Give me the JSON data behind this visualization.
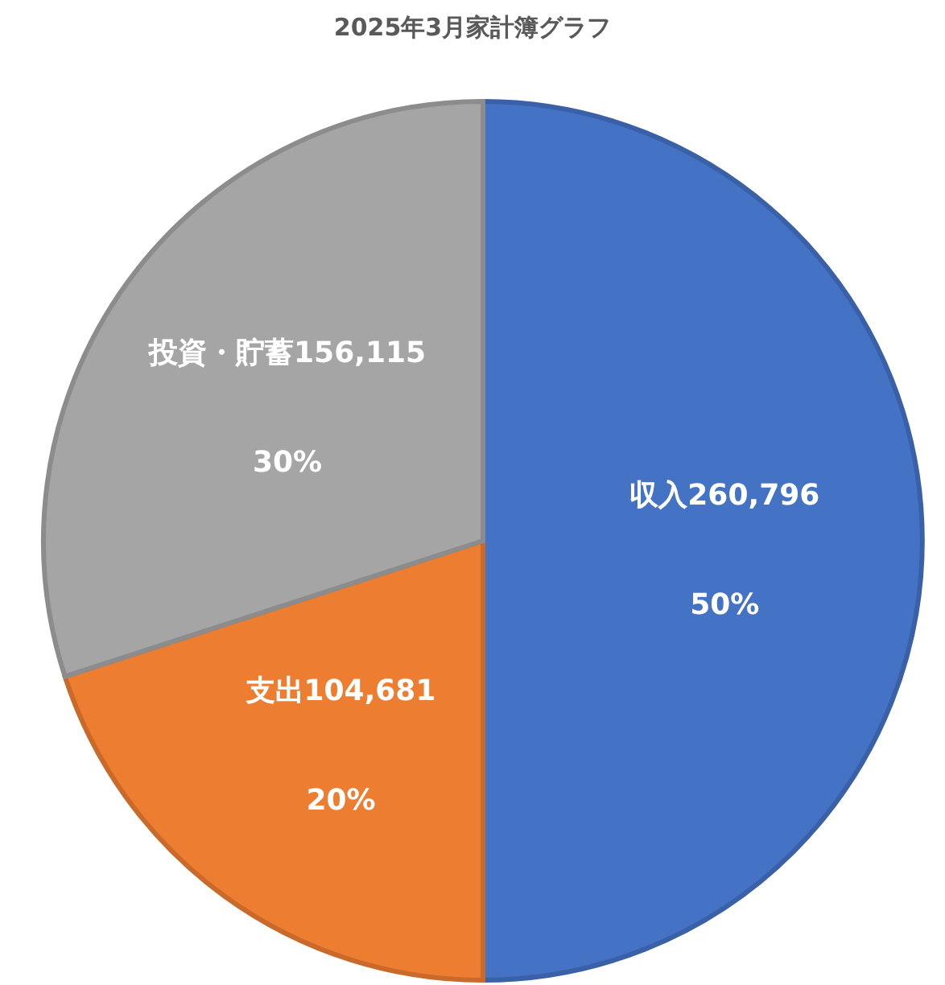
{
  "chart_data": {
    "type": "pie",
    "title": "2025年3月家計簿グラフ",
    "categories": [
      "収入260,796",
      "支出104,681",
      "投資・貯蓄156,115"
    ],
    "values": [
      50,
      20,
      30
    ],
    "colors": [
      "#4472c4",
      "#ed7d31",
      "#a5a5a5"
    ],
    "value_labels": [
      "50%",
      "20%",
      "30%"
    ]
  }
}
